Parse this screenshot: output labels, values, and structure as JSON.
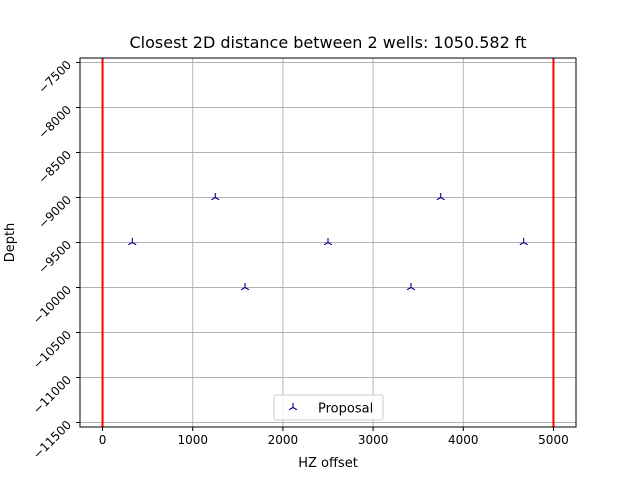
{
  "chart_data": {
    "type": "scatter",
    "title": "Closest 2D distance between 2 wells: 1050.582 ft",
    "xlabel": "HZ offset",
    "ylabel": "Depth",
    "xlim": [
      -250,
      5250
    ],
    "ylim": [
      -11550,
      -7450
    ],
    "xticks": [
      0,
      1000,
      2000,
      3000,
      4000,
      5000
    ],
    "xtick_labels": [
      "0",
      "1000",
      "2000",
      "3000",
      "4000",
      "5000"
    ],
    "yticks": [
      -7500,
      -8000,
      -8500,
      -9000,
      -9500,
      -10000,
      -10500,
      -11000,
      -11500
    ],
    "ytick_labels": [
      "−7500",
      "−8000",
      "−8500",
      "−9000",
      "−9500",
      "−10000",
      "−10500",
      "−11000",
      "−11500"
    ],
    "grid": true,
    "legend_placement": "bottom-center",
    "series": [
      {
        "name": "Proposal",
        "marker": "tri_up",
        "color": "#00008b",
        "x": [
          330,
          1250,
          1580,
          2500,
          3420,
          3750,
          4670
        ],
        "y": [
          -9500,
          -9000,
          -10000,
          -9500,
          -10000,
          -9000,
          -9500
        ]
      }
    ],
    "vertical_lines": [
      {
        "x": 0,
        "color": "#ff0000"
      },
      {
        "x": 5000,
        "color": "#ff0000"
      }
    ]
  }
}
